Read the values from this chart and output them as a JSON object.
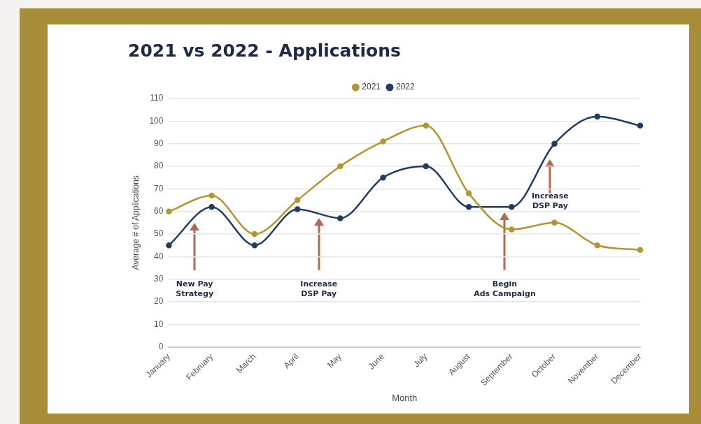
{
  "chart_data": {
    "type": "line",
    "title": "2021 vs 2022 - Applications",
    "xlabel": "Month",
    "ylabel": "Average # of Applications",
    "categories": [
      "January",
      "February",
      "March",
      "April",
      "May",
      "June",
      "July",
      "August",
      "September",
      "October",
      "November",
      "December"
    ],
    "series": [
      {
        "name": "2021",
        "color": "#b5952f",
        "values": [
          60,
          67,
          50,
          65,
          80,
          91,
          98,
          68,
          52,
          55,
          45,
          43
        ]
      },
      {
        "name": "2022",
        "color": "#1f3d63",
        "values": [
          45,
          62,
          45,
          61,
          57,
          75,
          80,
          62,
          62,
          90,
          102,
          98
        ]
      }
    ],
    "ylim": [
      0,
      110
    ],
    "yticks": [
      0,
      10,
      20,
      30,
      40,
      50,
      60,
      70,
      80,
      90,
      100,
      110
    ],
    "grid": "y",
    "legend": "top",
    "marker": "circle",
    "line_style": "solid",
    "annotations": [
      "New Pay\nStrategy",
      "Increase\nDSP Pay",
      "Begin\nAds Campaign",
      "Increase\nDSP Pay"
    ]
  }
}
